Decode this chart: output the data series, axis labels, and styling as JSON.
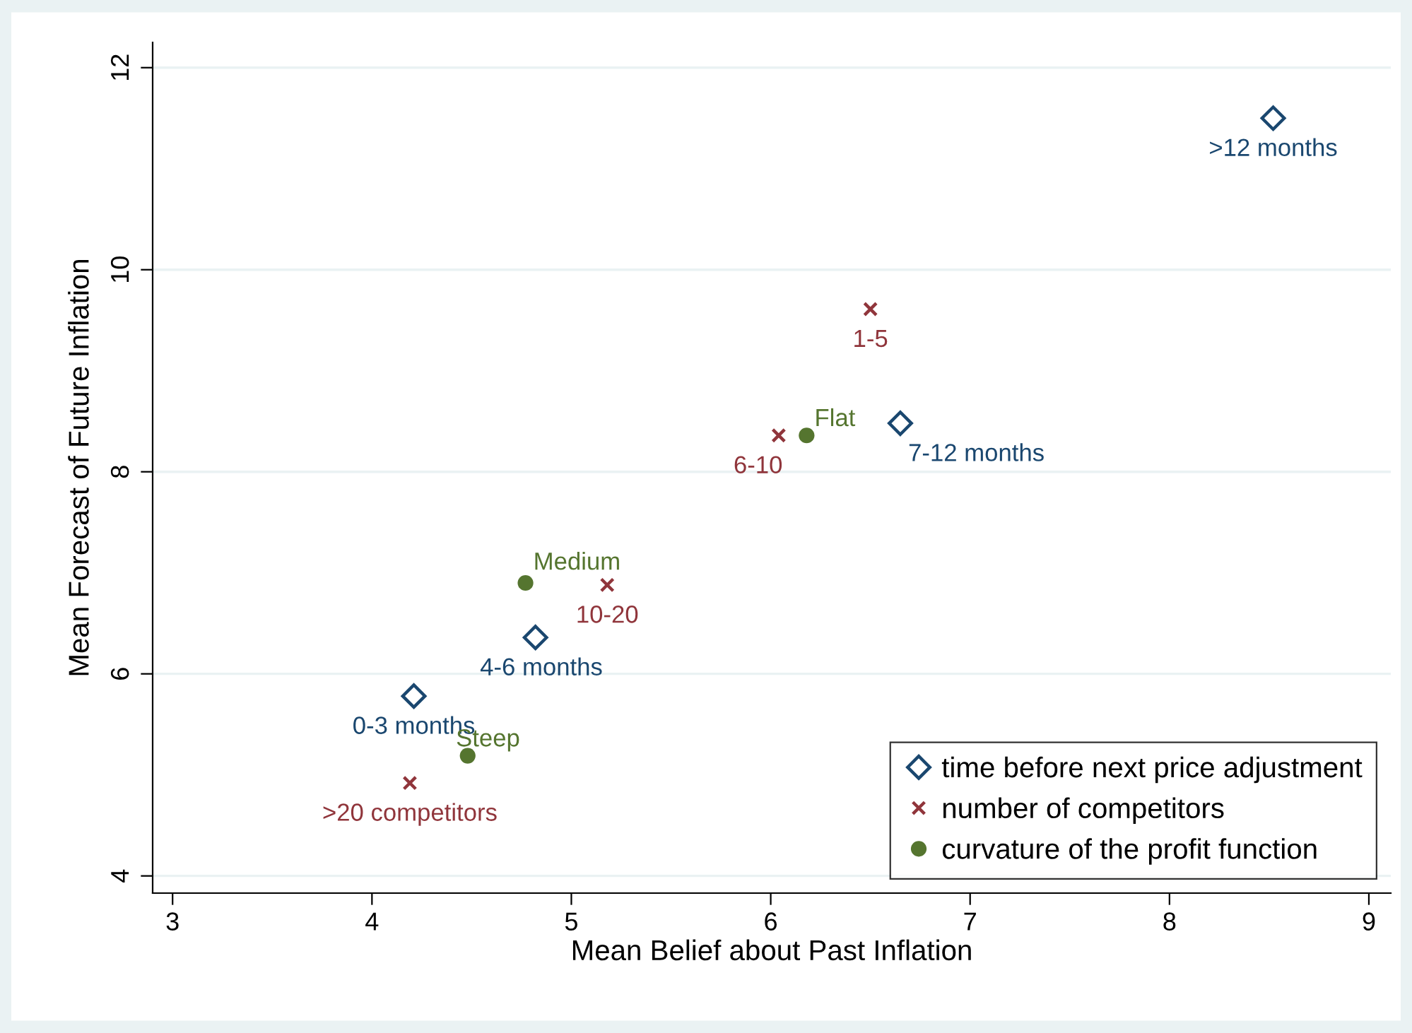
{
  "chart_data": {
    "type": "scatter",
    "xlabel": "Mean Belief about Past Inflation",
    "ylabel": "Mean Forecast of Future Inflation",
    "xlim": [
      2.9,
      9.11
    ],
    "ylim": [
      3.83,
      12.25
    ],
    "xticks": [
      3,
      4,
      5,
      6,
      7,
      8,
      9
    ],
    "yticks": [
      4,
      6,
      8,
      10,
      12
    ],
    "grid": "y",
    "legend": "bottom right",
    "series": [
      {
        "name": "time before next price adjustment",
        "color": "#1a476f",
        "marker": "diamond",
        "x": [
          4.21,
          4.82,
          6.65,
          8.52
        ],
        "values": [
          5.78,
          6.36,
          8.48,
          11.5
        ]
      },
      {
        "name": "number of competitors",
        "color": "#90353b",
        "marker": "cross",
        "x": [
          6.5,
          6.04,
          5.18,
          4.19
        ],
        "values": [
          9.61,
          8.36,
          6.88,
          4.92
        ]
      },
      {
        "name": "curvature of the profit function",
        "color": "#55752f",
        "marker": "circle",
        "x": [
          6.18,
          4.77,
          4.48
        ],
        "values": [
          8.36,
          6.9,
          5.19
        ]
      }
    ],
    "annotations": [
      {
        "text": "0-3 months",
        "x": 4.21,
        "y": 5.78
      },
      {
        "text": "4-6 months",
        "x": 4.82,
        "y": 6.36
      },
      {
        "text": "7-12 months",
        "x": 6.65,
        "y": 8.48
      },
      {
        "text": ">12 months",
        "x": 8.52,
        "y": 11.5
      },
      {
        "text": "1-5",
        "x": 6.5,
        "y": 9.61
      },
      {
        "text": "6-10",
        "x": 6.04,
        "y": 8.36
      },
      {
        "text": "10-20",
        "x": 5.18,
        "y": 6.88
      },
      {
        "text": ">20 competitors",
        "x": 4.19,
        "y": 4.92
      },
      {
        "text": "Flat",
        "x": 6.18,
        "y": 8.36
      },
      {
        "text": "Medium",
        "x": 4.77,
        "y": 6.9
      },
      {
        "text": "Steep",
        "x": 4.48,
        "y": 5.19
      }
    ]
  }
}
